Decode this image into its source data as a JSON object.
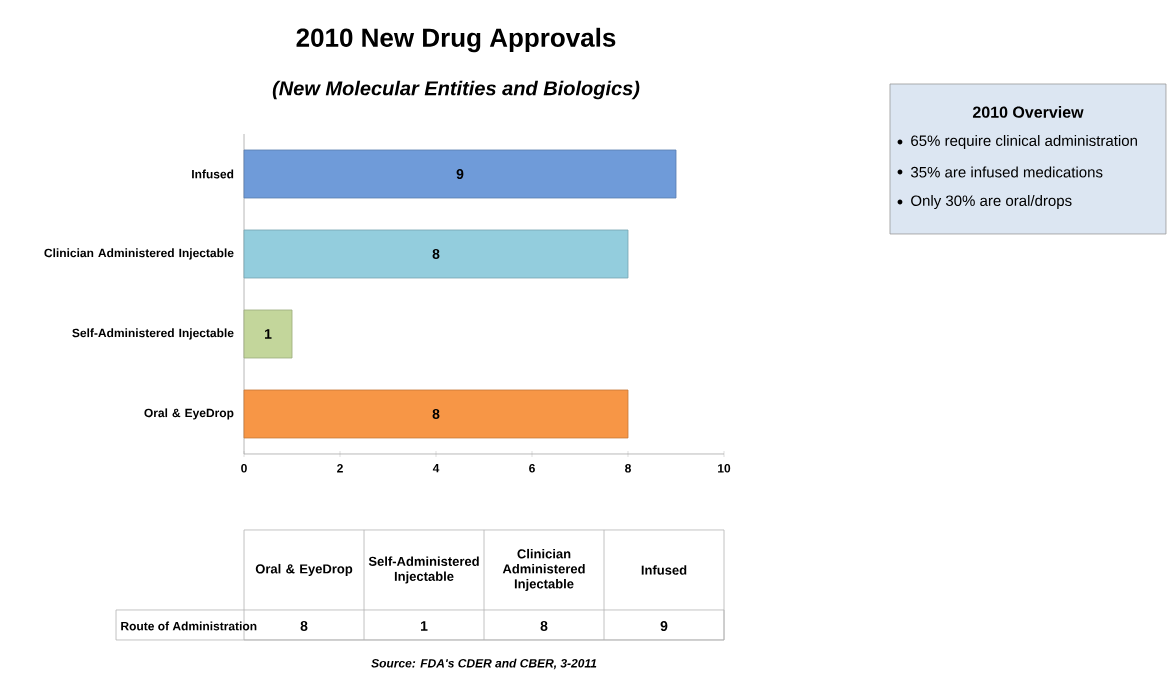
{
  "chart_data": [
    {
      "type": "bar",
      "orientation": "horizontal",
      "title": "2010 New Drug Approvals",
      "subtitle": "(New Molecular Entities and Biologics)",
      "categories": [
        "Infused",
        "Clinician Administered Injectable",
        "Self-Administered Injectable",
        "Oral & EyeDrop"
      ],
      "series": [
        {
          "colors": [
            "#6f9bd9",
            "#93cddd",
            "#c3d69b",
            "#f79646"
          ],
          "values": [
            9,
            8,
            1,
            8
          ]
        }
      ],
      "data_labels": true,
      "xlim": [
        0,
        10
      ],
      "xticks": [
        0,
        2,
        4,
        6,
        8,
        10
      ],
      "annotations": [
        "2010 Overview",
        "65% require clinical administration",
        "35% are infused medications",
        "Only 30% are oral/drops",
        "Source: FDA's CDER and CBER, 3-2011"
      ]
    },
    {
      "type": "other",
      "categories": [
        "Oral & EyeDrop",
        "Self-Administered Injectable",
        "Clinician Administered Injectable",
        "Infused"
      ],
      "series": [
        {
          "name": "Route of Administration",
          "values": [
            8,
            1,
            8,
            9
          ],
          "value_labels": [
            "8",
            "1",
            "8",
            "9"
          ]
        }
      ]
    }
  ]
}
